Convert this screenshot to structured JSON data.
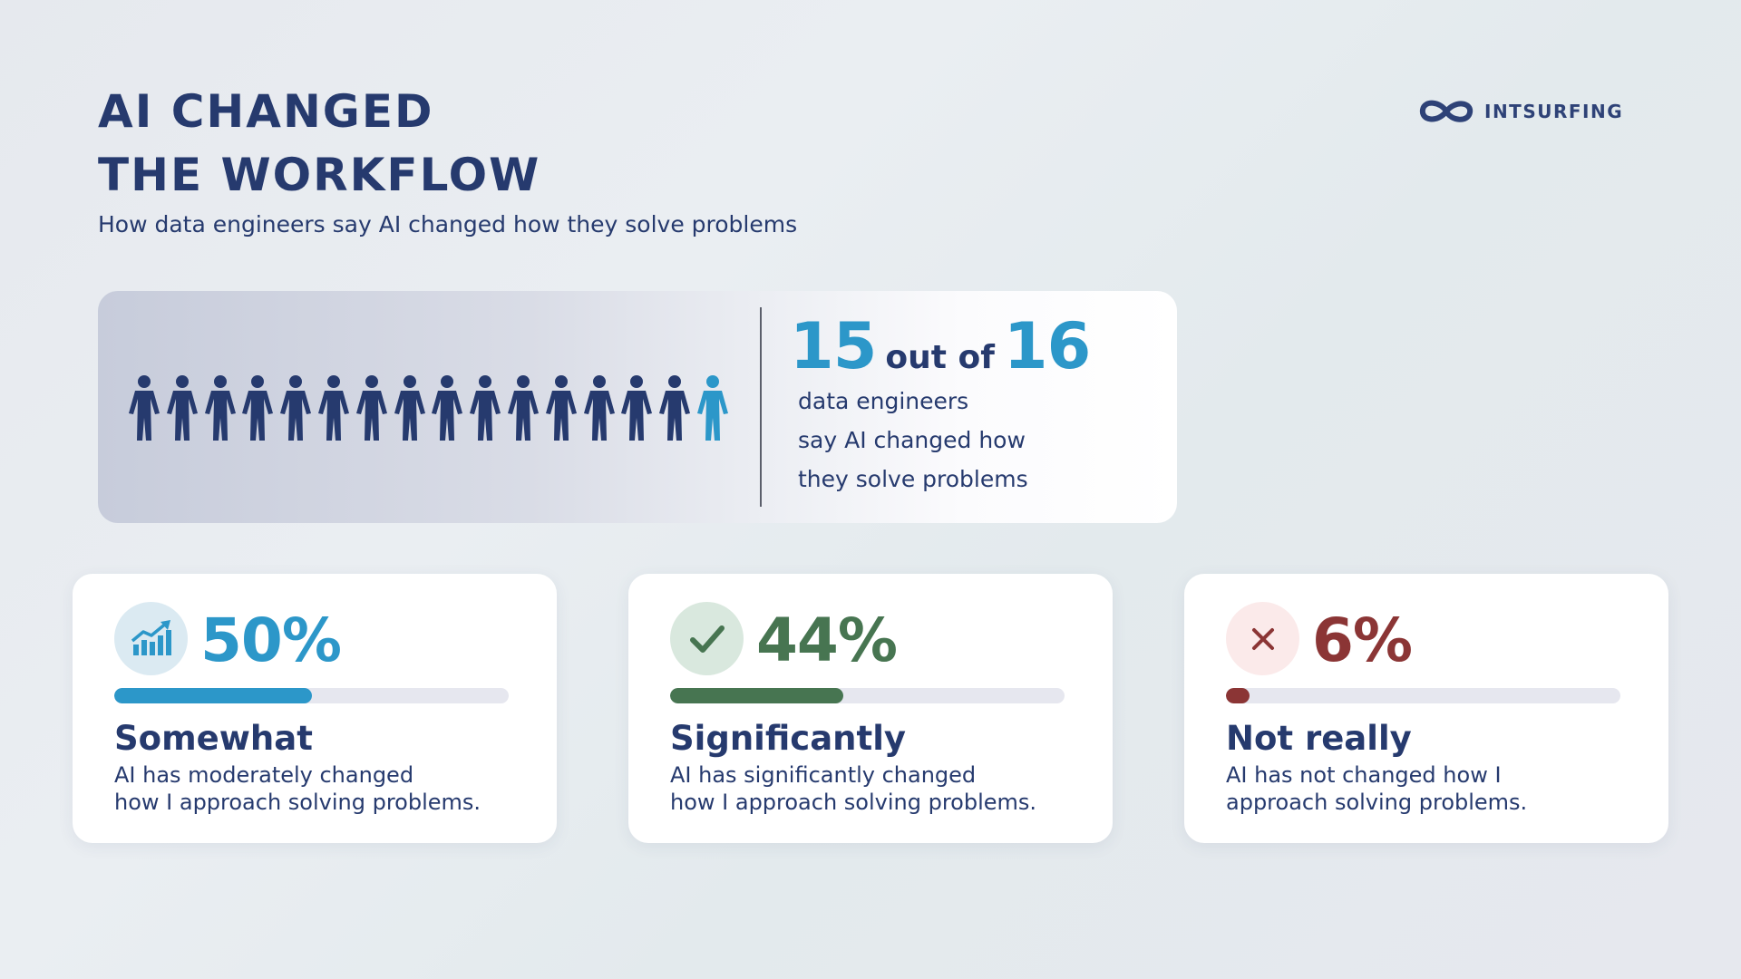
{
  "header": {
    "title_line1": "AI CHANGED",
    "title_line2": "THE WORKFLOW",
    "subtitle": "How data engineers say AI changed how they solve problems"
  },
  "logo": {
    "text": "INTSURFING",
    "icon": "infinity-logo-icon"
  },
  "hero": {
    "count": "15",
    "out_of": "out of",
    "total": "16",
    "desc_line1": "data engineers",
    "desc_line2": "say AI changed how",
    "desc_line3": "they solve problems",
    "people_highlighted": 15,
    "people_total": 16,
    "people_icon": "person-icon",
    "colors": {
      "highlighted": "#263a6e",
      "other": "#2c97c9"
    }
  },
  "cards": [
    {
      "percent": "50%",
      "value": 0.5,
      "label": "Somewhat",
      "desc_line1": "AI has moderately changed",
      "desc_line2": "how I approach solving problems.",
      "icon": "growth-chart-icon",
      "color": "#2c97c9",
      "icon_bg": "#dbeaf2"
    },
    {
      "percent": "44%",
      "value": 0.44,
      "label": "Significantly",
      "desc_line1": "AI has significantly changed",
      "desc_line2": "how I approach solving problems.",
      "icon": "checkmark-icon",
      "color": "#477551",
      "icon_bg": "#d9e8de"
    },
    {
      "percent": "6%",
      "value": 0.06,
      "label": "Not really",
      "desc_line1": "AI has not changed how I",
      "desc_line2": "approach solving problems.",
      "icon": "close-x-icon",
      "color": "#8b3535",
      "icon_bg": "#fbeaea"
    }
  ]
}
